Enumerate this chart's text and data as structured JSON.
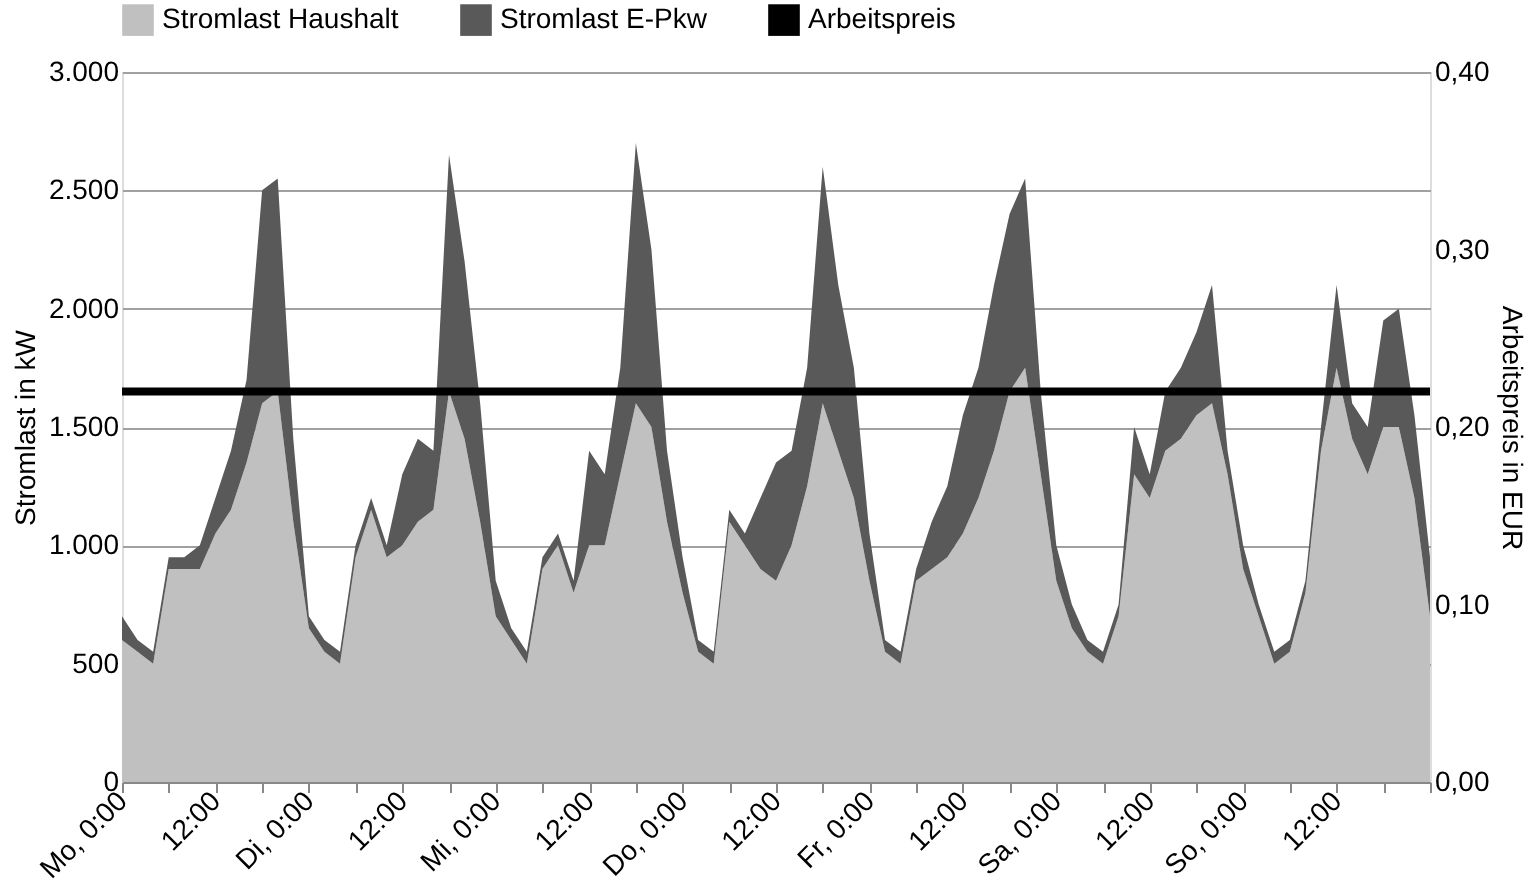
{
  "chart_data": {
    "type": "area",
    "stacked": true,
    "ylabel": "Stromlast in kW",
    "y2label": "Arbeitspreis in EUR",
    "categories": [
      "Mo, 0:00",
      null,
      null,
      null,
      null,
      null,
      "12:00",
      null,
      null,
      null,
      null,
      null,
      "Di, 0:00",
      null,
      null,
      null,
      null,
      null,
      "12:00",
      null,
      null,
      null,
      null,
      null,
      "Mi, 0:00",
      null,
      null,
      null,
      null,
      null,
      "12:00",
      null,
      null,
      null,
      null,
      null,
      "Do, 0:00",
      null,
      null,
      null,
      null,
      null,
      "12:00",
      null,
      null,
      null,
      null,
      null,
      "Fr, 0:00",
      null,
      null,
      null,
      null,
      null,
      "12:00",
      null,
      null,
      null,
      null,
      null,
      "Sa, 0:00",
      null,
      null,
      null,
      null,
      null,
      "12:00",
      null,
      null,
      null,
      null,
      null,
      "So, 0:00",
      null,
      null,
      null,
      null,
      null,
      "12:00",
      null,
      null,
      null,
      null,
      null,
      null
    ],
    "series": [
      {
        "name": "Stromlast Haushalt",
        "color": "#c0c0c0",
        "values": [
          600,
          550,
          500,
          900,
          900,
          900,
          1050,
          1150,
          1350,
          1600,
          1650,
          1100,
          650,
          550,
          500,
          950,
          1150,
          950,
          1000,
          1100,
          1150,
          1650,
          1450,
          1100,
          700,
          600,
          500,
          900,
          1000,
          800,
          1000,
          1000,
          1300,
          1600,
          1500,
          1100,
          800,
          550,
          500,
          1100,
          1000,
          900,
          850,
          1000,
          1250,
          1600,
          1400,
          1200,
          850,
          550,
          500,
          850,
          900,
          950,
          1050,
          1200,
          1400,
          1650,
          1750,
          1300,
          850,
          650,
          550,
          500,
          700,
          1300,
          1200,
          1400,
          1450,
          1550,
          1600,
          1300,
          900,
          700,
          500,
          550,
          800,
          1400,
          1750,
          1450,
          1300,
          1500,
          1500,
          1200,
          700
        ]
      },
      {
        "name": "Stromlast E-Pkw",
        "color": "#595959",
        "values": [
          100,
          50,
          50,
          50,
          50,
          100,
          150,
          250,
          350,
          900,
          900,
          350,
          50,
          50,
          50,
          50,
          50,
          50,
          300,
          350,
          250,
          1000,
          750,
          500,
          150,
          50,
          50,
          50,
          50,
          50,
          400,
          300,
          450,
          1100,
          750,
          300,
          150,
          50,
          50,
          50,
          50,
          300,
          500,
          400,
          500,
          1000,
          700,
          550,
          200,
          50,
          50,
          50,
          200,
          300,
          500,
          550,
          700,
          750,
          800,
          350,
          150,
          100,
          50,
          50,
          50,
          200,
          100,
          250,
          300,
          350,
          500,
          100,
          100,
          50,
          50,
          50,
          50,
          100,
          350,
          150,
          200,
          450,
          500,
          350,
          250
        ]
      },
      {
        "name": "Arbeitspreis",
        "color": "#000000",
        "type": "line",
        "axis": "y2",
        "line_style": "solid",
        "values": [
          0.22,
          0.22,
          0.22,
          0.22,
          0.22,
          0.22,
          0.22,
          0.22,
          0.22,
          0.22,
          0.22,
          0.22,
          0.22,
          0.22,
          0.22,
          0.22,
          0.22,
          0.22,
          0.22,
          0.22,
          0.22,
          0.22,
          0.22,
          0.22,
          0.22,
          0.22,
          0.22,
          0.22,
          0.22,
          0.22,
          0.22,
          0.22,
          0.22,
          0.22,
          0.22,
          0.22,
          0.22,
          0.22,
          0.22,
          0.22,
          0.22,
          0.22,
          0.22,
          0.22,
          0.22,
          0.22,
          0.22,
          0.22,
          0.22,
          0.22,
          0.22,
          0.22,
          0.22,
          0.22,
          0.22,
          0.22,
          0.22,
          0.22,
          0.22,
          0.22,
          0.22,
          0.22,
          0.22,
          0.22,
          0.22,
          0.22,
          0.22,
          0.22,
          0.22,
          0.22,
          0.22,
          0.22,
          0.22,
          0.22,
          0.22,
          0.22,
          0.22,
          0.22,
          0.22,
          0.22,
          0.22,
          0.22,
          0.22,
          0.22,
          0.22
        ]
      }
    ],
    "ylim": [
      0,
      3000
    ],
    "yticks": [
      0,
      500,
      {
        "value": 1000,
        "label": "1.000"
      },
      {
        "value": 1500,
        "label": "1.500"
      },
      {
        "value": 2000,
        "label": "2.000"
      },
      {
        "value": 2500,
        "label": "2.500"
      },
      {
        "value": 3000,
        "label": "3.000"
      }
    ],
    "y2lim": [
      0,
      0.4
    ],
    "y2ticks": [
      {
        "value": 0,
        "label": "0,00"
      },
      {
        "value": 0.1,
        "label": "0,10"
      },
      {
        "value": 0.2,
        "label": "0,20"
      },
      {
        "value": 0.3,
        "label": "0,30"
      },
      {
        "value": 0.4,
        "label": "0,40"
      }
    ],
    "grid": "y",
    "legend": "top"
  }
}
